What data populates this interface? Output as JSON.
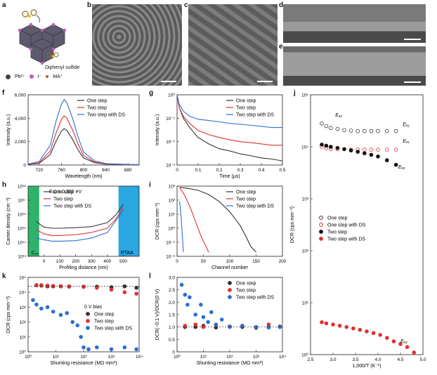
{
  "panel_letters": [
    "a",
    "b",
    "c",
    "d",
    "e",
    "f",
    "g",
    "h",
    "i",
    "j",
    "k",
    "l"
  ],
  "panel_a": {
    "molecule_label": "Diphenyl sulfide",
    "legend": [
      "Pb²⁺",
      "I⁻",
      "MA⁺"
    ]
  },
  "colors": {
    "one_step": "#333333",
    "two_step": "#e03030",
    "two_step_ds": "#2a6fd6",
    "green_region": "#2fb36b",
    "blue_region": "#2aa6e0"
  },
  "chart_data": [
    {
      "id": "f",
      "type": "line",
      "xlabel": "Wavelength (nm)",
      "ylabel": "Intensity (a.u.)",
      "xlim": [
        700,
        900
      ],
      "ylim": [
        0,
        6000
      ],
      "xticks": [
        "720",
        "760",
        "800",
        "840",
        "880"
      ],
      "yticks": [
        "0",
        "2,000",
        "4,000",
        "6,000"
      ],
      "legend": [
        "One step",
        "Two step",
        "Two step with DS"
      ],
      "series": [
        {
          "name": "One step",
          "x": [
            700,
            720,
            740,
            750,
            760,
            765,
            770,
            780,
            790,
            800,
            820,
            840,
            880,
            900
          ],
          "y": [
            50,
            150,
            900,
            2000,
            2900,
            3100,
            2950,
            2200,
            1300,
            600,
            200,
            80,
            30,
            20
          ]
        },
        {
          "name": "Two step",
          "x": [
            700,
            720,
            740,
            750,
            760,
            765,
            770,
            780,
            790,
            800,
            820,
            840,
            880,
            900
          ],
          "y": [
            60,
            200,
            1200,
            2700,
            3900,
            4200,
            4000,
            3000,
            1800,
            800,
            250,
            100,
            40,
            30
          ]
        },
        {
          "name": "Two step with DS",
          "x": [
            700,
            720,
            740,
            750,
            760,
            765,
            770,
            780,
            790,
            800,
            820,
            840,
            880,
            900
          ],
          "y": [
            80,
            300,
            1700,
            3700,
            5200,
            5600,
            5300,
            4000,
            2400,
            1100,
            350,
            120,
            50,
            40
          ]
        }
      ]
    },
    {
      "id": "g",
      "type": "line",
      "xlabel": "Time (μs)",
      "ylabel": "Intensity (a.u.)",
      "xlim": [
        0,
        0.5
      ],
      "ylog": true,
      "xticks": [
        "0",
        "0.1",
        "0.2",
        "0.3",
        "0.4",
        "0.5"
      ],
      "yticks": [
        "10⁻³",
        "10⁻²",
        "10⁻¹",
        "10⁰"
      ],
      "legend": [
        "One step",
        "Two step",
        "Two step with DS"
      ],
      "series": [
        {
          "name": "One step",
          "x": [
            0,
            0.01,
            0.03,
            0.06,
            0.1,
            0.15,
            0.2,
            0.25,
            0.3,
            0.35,
            0.4,
            0.45,
            0.5
          ],
          "y": [
            1,
            0.3,
            0.1,
            0.04,
            0.015,
            0.008,
            0.005,
            0.004,
            0.003,
            0.0025,
            0.002,
            0.0018,
            0.0015
          ]
        },
        {
          "name": "Two step",
          "x": [
            0,
            0.01,
            0.03,
            0.06,
            0.1,
            0.15,
            0.2,
            0.25,
            0.3,
            0.35,
            0.4,
            0.45,
            0.5
          ],
          "y": [
            1,
            0.3,
            0.12,
            0.06,
            0.03,
            0.02,
            0.015,
            0.012,
            0.01,
            0.009,
            0.008,
            0.007,
            0.007
          ]
        },
        {
          "name": "Two step with DS",
          "x": [
            0,
            0.01,
            0.03,
            0.06,
            0.1,
            0.15,
            0.2,
            0.25,
            0.3,
            0.35,
            0.4,
            0.45,
            0.5
          ],
          "y": [
            1,
            0.4,
            0.2,
            0.12,
            0.09,
            0.08,
            0.07,
            0.06,
            0.055,
            0.05,
            0.045,
            0.04,
            0.04
          ]
        }
      ]
    },
    {
      "id": "h",
      "type": "line",
      "xlabel": "Profiling distance (nm)",
      "ylabel": "Carrier density (cm⁻³)",
      "xlim": [
        -100,
        600
      ],
      "ylog": true,
      "xticks": [
        "0",
        "100",
        "200",
        "300",
        "400",
        "500"
      ],
      "yticks": [
        "10¹³",
        "10¹⁴",
        "10¹⁵",
        "10¹⁶",
        "10¹⁷",
        "10¹⁸"
      ],
      "annotation": "Eω = 0.355 eV",
      "region_labels": [
        "C₆₀",
        "PTAA"
      ],
      "legend": [
        "One step",
        "Two step",
        "Two step with DS"
      ],
      "series": [
        {
          "name": "One step",
          "x": [
            -50,
            0,
            50,
            100,
            200,
            300,
            400,
            450,
            500
          ],
          "y": [
            3000000000000000.0,
            1200000000000000.0,
            1000000000000000.0,
            1000000000000000.0,
            1100000000000000.0,
            1300000000000000.0,
            2500000000000000.0,
            8000000000000000.0,
            5e+16
          ]
        },
        {
          "name": "Two step",
          "x": [
            -50,
            0,
            50,
            100,
            200,
            300,
            400,
            450,
            500
          ],
          "y": [
            800000000000000.0,
            400000000000000.0,
            300000000000000.0,
            300000000000000.0,
            350000000000000.0,
            500000000000000.0,
            1000000000000000.0,
            4000000000000000.0,
            3e+16
          ]
        },
        {
          "name": "Two step with DS",
          "x": [
            -50,
            0,
            50,
            100,
            200,
            300,
            400,
            450,
            500
          ],
          "y": [
            200000000000000.0,
            150000000000000.0,
            120000000000000.0,
            120000000000000.0,
            130000000000000.0,
            200000000000000.0,
            500000000000000.0,
            3000000000000000.0,
            2e+16
          ]
        }
      ]
    },
    {
      "id": "i",
      "type": "line",
      "xlabel": "Channel number",
      "ylabel": "DCR (cps mm⁻²)",
      "xlim": [
        0,
        200
      ],
      "ylog": true,
      "xticks": [
        "0",
        "50",
        "100",
        "150",
        "200"
      ],
      "yticks": [
        "10⁻²",
        "10⁻¹",
        "10⁰",
        "10¹",
        "10²",
        "10³"
      ],
      "legend": [
        "One step",
        "Two step",
        "Two step with DS"
      ],
      "series": [
        {
          "name": "One step",
          "x": [
            5,
            20,
            40,
            60,
            80,
            100,
            120,
            130,
            140,
            150
          ],
          "y": [
            800,
            700,
            500,
            250,
            80,
            15,
            1.5,
            0.3,
            0.05,
            0.02
          ]
        },
        {
          "name": "Two step",
          "x": [
            5,
            15,
            25,
            35,
            45,
            55,
            60
          ],
          "y": [
            800,
            200,
            30,
            3,
            0.3,
            0.05,
            0.02
          ]
        },
        {
          "name": "Two step with DS",
          "x": [
            5,
            8,
            10,
            12
          ],
          "y": [
            80,
            5,
            0.3,
            0.02
          ]
        }
      ]
    },
    {
      "id": "j",
      "type": "scatter",
      "xlabel": "1,000/T (K⁻¹)",
      "ylabel": "DCR (cps mm⁻²)",
      "xlim": [
        2.5,
        5.0
      ],
      "ylog": true,
      "xticks": [
        "2.5",
        "3.0",
        "3.5",
        "4.0",
        "4.5",
        "5.0"
      ],
      "yticks": [
        "10⁰",
        "10¹",
        "10²",
        "10³",
        "10⁴",
        "10⁵"
      ],
      "annotations": [
        "Eₐ₂",
        "Eₐ₁",
        "Eₐ₁",
        "Eₐ₂",
        "Eₐ₂"
      ],
      "legend": [
        "One step",
        "One step with DS",
        "Two step",
        "Two step with DS"
      ],
      "series": [
        {
          "name": "One step",
          "x": [
            2.75,
            2.85,
            2.95,
            3.1,
            3.25,
            3.4,
            3.55,
            3.7,
            3.85,
            4.0,
            4.2,
            4.4
          ],
          "y": [
            28000,
            25000,
            23000,
            22000,
            21000,
            20500,
            20000,
            20000,
            20000,
            20000,
            20000,
            20000
          ]
        },
        {
          "name": "One step with DS",
          "x": [
            2.75,
            2.85,
            2.95,
            3.1,
            3.25,
            3.4,
            3.55,
            3.7,
            3.85,
            4.0,
            4.2,
            4.4
          ],
          "y": [
            10000,
            9500,
            9000,
            9000,
            9000,
            8800,
            8800,
            8800,
            8800,
            8800,
            8800,
            8800
          ]
        },
        {
          "name": "Two step",
          "x": [
            2.75,
            2.85,
            2.95,
            3.1,
            3.25,
            3.4,
            3.55,
            3.7,
            3.85,
            4.0,
            4.2,
            4.4
          ],
          "y": [
            11000,
            10500,
            10000,
            9500,
            9000,
            8500,
            8000,
            7500,
            7000,
            6500,
            5500,
            4500
          ]
        },
        {
          "name": "Two step with DS",
          "x": [
            2.75,
            2.85,
            3.0,
            3.15,
            3.3,
            3.45,
            3.6,
            3.75,
            3.9,
            4.05,
            4.2,
            4.35,
            4.5,
            4.65,
            4.8
          ],
          "y": [
            4.2,
            4.0,
            3.8,
            3.6,
            3.4,
            3.2,
            3.0,
            2.8,
            2.6,
            2.4,
            2.1,
            1.8,
            1.6,
            1.4,
            1.1
          ]
        }
      ]
    },
    {
      "id": "k",
      "type": "scatter",
      "xlabel": "Shunting resistance (MΩ mm²)",
      "ylabel": "DCR (cps mm⁻²)",
      "xlog": true,
      "ylog": true,
      "xticks": [
        "10⁰",
        "10¹",
        "10²",
        "10³",
        "10⁴"
      ],
      "yticks": [
        "10⁰",
        "10¹",
        "10²",
        "10³",
        "10⁴",
        "10⁵"
      ],
      "annotation": "0 V bias",
      "legend": [
        "One step",
        "Two step",
        "Two step with DS"
      ],
      "series": [
        {
          "name": "One step",
          "x": [
            2,
            3,
            5,
            8,
            15,
            30,
            100,
            300,
            1000,
            3000,
            8000
          ],
          "y": [
            30000,
            28000,
            25000,
            25000,
            25000,
            24000,
            24000,
            24000,
            22000,
            25000,
            20000
          ]
        },
        {
          "name": "Two step",
          "x": [
            2,
            3,
            5,
            8,
            15,
            30,
            100,
            300,
            1000,
            3000,
            8000
          ],
          "y": [
            30000,
            30000,
            28000,
            27000,
            26000,
            25000,
            23000,
            20000,
            15000,
            10000,
            8000
          ]
        },
        {
          "name": "Two step with DS",
          "x": [
            1.5,
            2,
            3,
            5,
            8,
            15,
            25,
            40,
            60,
            80,
            100,
            150,
            300,
            1000,
            3000,
            8000
          ],
          "y": [
            3000,
            1500,
            800,
            1000,
            500,
            300,
            400,
            100,
            60,
            10,
            2,
            1.5,
            2,
            1.5,
            2,
            1.5
          ]
        }
      ]
    },
    {
      "id": "l",
      "type": "scatter",
      "xlabel": "Shunting resistance (MΩ mm²)",
      "ylabel": "DCR(−0.1 V)/DCR(0 V)",
      "xlog": true,
      "ylim": [
        0,
        3.0
      ],
      "xticks": [
        "10⁰",
        "10¹",
        "10²",
        "10³",
        "10⁴"
      ],
      "yticks": [
        "0",
        "0.5",
        "1.0",
        "1.5",
        "2.0",
        "2.5",
        "3.0"
      ],
      "legend": [
        "One step",
        "Two step",
        "Two step with DS"
      ],
      "series": [
        {
          "name": "One step",
          "x": [
            2,
            5,
            10,
            30,
            100,
            300,
            1000,
            3000,
            8000
          ],
          "y": [
            1.0,
            1.0,
            1.05,
            0.98,
            1.02,
            1.0,
            0.97,
            1.0,
            1.02
          ]
        },
        {
          "name": "Two step",
          "x": [
            2,
            5,
            10,
            30,
            100,
            300,
            1000,
            3000,
            8000
          ],
          "y": [
            1.05,
            1.1,
            1.0,
            1.08,
            1.02,
            1.05,
            1.0,
            1.1,
            1.0
          ]
        },
        {
          "name": "Two step with DS",
          "x": [
            1.5,
            2,
            2.5,
            3,
            5,
            8,
            10,
            15,
            20,
            30,
            50,
            100,
            300,
            1000,
            3000,
            8000
          ],
          "y": [
            2.7,
            2.3,
            1.9,
            2.2,
            1.5,
            1.9,
            1.4,
            1.2,
            1.6,
            1.1,
            1.3,
            1.0,
            1.05,
            1.0,
            0.98,
            1.0
          ]
        }
      ]
    }
  ]
}
